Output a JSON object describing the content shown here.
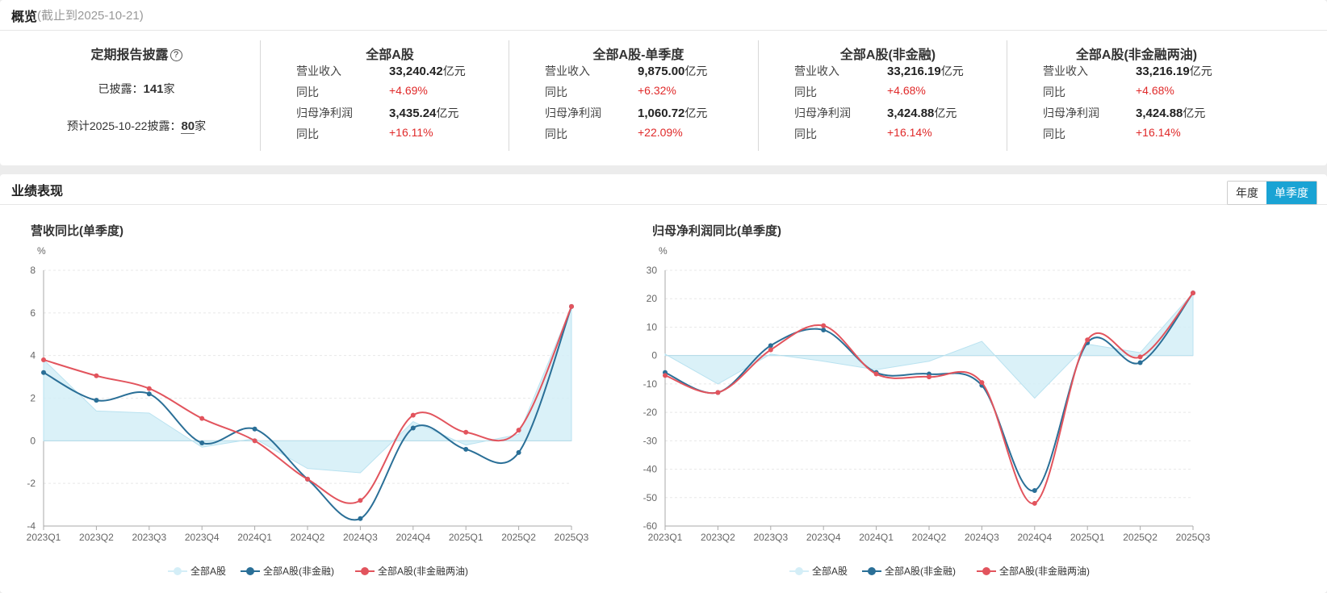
{
  "overview": {
    "title": "概览",
    "subtitle": "(截止到2025-10-21)",
    "disclosure": {
      "title": "定期报告披露",
      "help_icon": "question-circle-icon",
      "disclosed_label": "已披露：",
      "disclosed_count": "141",
      "disclosed_unit": "家",
      "forecast_label": "预计2025-10-22披露：",
      "forecast_count": "80",
      "forecast_unit": "家"
    },
    "stats": [
      {
        "title": "全部A股",
        "rev_label": "营业收入",
        "rev_value": "33,240.42",
        "unit": "亿元",
        "yoy_label": "同比",
        "rev_yoy": "+4.69%",
        "np_label": "归母净利润",
        "np_value": "3,435.24",
        "np_yoy": "+16.11%"
      },
      {
        "title": "全部A股-单季度",
        "rev_label": "营业收入",
        "rev_value": "9,875.00",
        "unit": "亿元",
        "yoy_label": "同比",
        "rev_yoy": "+6.32%",
        "np_label": "归母净利润",
        "np_value": "1,060.72",
        "np_yoy": "+22.09%"
      },
      {
        "title": "全部A股(非金融)",
        "rev_label": "营业收入",
        "rev_value": "33,216.19",
        "unit": "亿元",
        "yoy_label": "同比",
        "rev_yoy": "+4.68%",
        "np_label": "归母净利润",
        "np_value": "3,424.88",
        "np_yoy": "+16.14%"
      },
      {
        "title": "全部A股(非金融两油)",
        "rev_label": "营业收入",
        "rev_value": "33,216.19",
        "unit": "亿元",
        "yoy_label": "同比",
        "rev_yoy": "+4.68%",
        "np_label": "归母净利润",
        "np_value": "3,424.88",
        "np_yoy": "+16.14%"
      }
    ]
  },
  "performance": {
    "title": "业绩表现",
    "toggle": {
      "annual": "年度",
      "quarterly": "单季度",
      "active": "quarterly"
    }
  },
  "colors": {
    "area": "#d4eef7",
    "area_line": "#b9e2f0",
    "nonfin": "#2a6f97",
    "nonfin_ex_oil": "#e2545d",
    "toggle_active": "#1aa3d4",
    "positive": "#e02a2a"
  },
  "chart_data": [
    {
      "type": "line",
      "title": "营收同比(单季度)",
      "ylabel": "%",
      "ylim": [
        -4,
        8
      ],
      "yticks": [
        -4,
        -2,
        0,
        2,
        4,
        6,
        8
      ],
      "grid": true,
      "legend_position": "bottom",
      "categories": [
        "2023Q1",
        "2023Q2",
        "2023Q3",
        "2023Q4",
        "2024Q1",
        "2024Q2",
        "2024Q3",
        "2024Q4",
        "2025Q1",
        "2025Q2",
        "2025Q3"
      ],
      "series": [
        {
          "name": "全部A股",
          "style": "area",
          "values": [
            3.8,
            1.4,
            1.3,
            -0.3,
            0.1,
            -1.3,
            -1.5,
            0.9,
            -0.2,
            0.3,
            6.3
          ]
        },
        {
          "name": "全部A股(非金融)",
          "style": "line",
          "values": [
            3.2,
            1.9,
            2.2,
            -0.1,
            0.55,
            -1.8,
            -3.65,
            0.6,
            -0.4,
            -0.55,
            6.3
          ]
        },
        {
          "name": "全部A股(非金融两油)",
          "style": "line",
          "values": [
            3.8,
            3.05,
            2.45,
            1.05,
            0.0,
            -1.8,
            -2.8,
            1.2,
            0.4,
            0.5,
            6.3
          ]
        }
      ]
    },
    {
      "type": "line",
      "title": "归母净利润同比(单季度)",
      "ylabel": "%",
      "ylim": [
        -60,
        30
      ],
      "yticks": [
        -60,
        -50,
        -40,
        -30,
        -20,
        -10,
        0,
        10,
        20,
        30
      ],
      "grid": true,
      "legend_position": "bottom",
      "categories": [
        "2023Q1",
        "2023Q2",
        "2023Q3",
        "2023Q4",
        "2024Q1",
        "2024Q2",
        "2024Q3",
        "2024Q4",
        "2025Q1",
        "2025Q2",
        "2025Q3"
      ],
      "series": [
        {
          "name": "全部A股",
          "style": "area",
          "values": [
            0.5,
            -10,
            0.5,
            -2,
            -5,
            -2,
            5,
            -15,
            4,
            1,
            22
          ]
        },
        {
          "name": "全部A股(非金融)",
          "style": "line",
          "values": [
            -6,
            -13,
            3.5,
            9,
            -6,
            -6.5,
            -10.5,
            -47.5,
            4.5,
            -2.5,
            22
          ]
        },
        {
          "name": "全部A股(非金融两油)",
          "style": "line",
          "values": [
            -7,
            -13,
            2,
            10.5,
            -6.5,
            -7.5,
            -9.5,
            -52,
            5.5,
            -0.5,
            22
          ]
        }
      ]
    }
  ]
}
